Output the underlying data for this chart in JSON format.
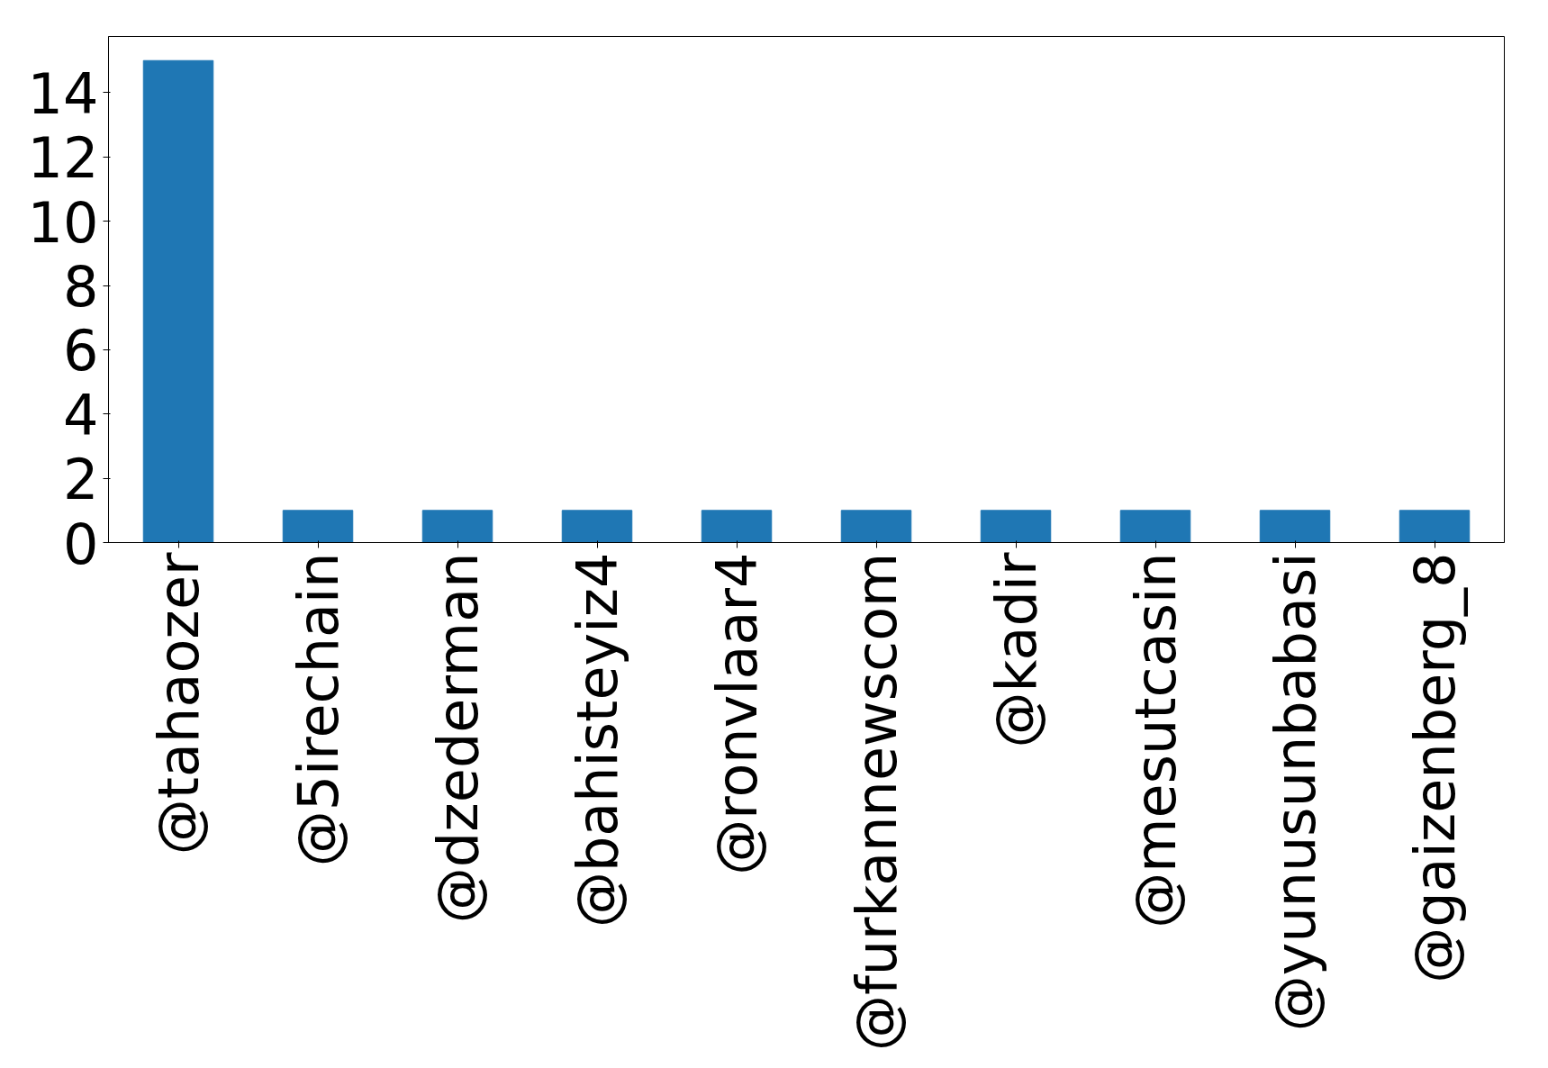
{
  "chart_data": {
    "type": "bar",
    "categories": [
      "@tahaozer",
      "@5irechain",
      "@dzederman",
      "@bahisteyiz4",
      "@ronvlaar4",
      "@furkannewscom",
      "@kadir",
      "@mesutcasin",
      "@yunusunbabasi",
      "@gaizenberg_8"
    ],
    "values": [
      15,
      1,
      1,
      1,
      1,
      1,
      1,
      1,
      1,
      1
    ],
    "color": "#1f77b4",
    "ylim": [
      0,
      15.75
    ],
    "yticks": [
      0,
      2,
      4,
      6,
      8,
      10,
      12,
      14
    ],
    "grid": false
  }
}
